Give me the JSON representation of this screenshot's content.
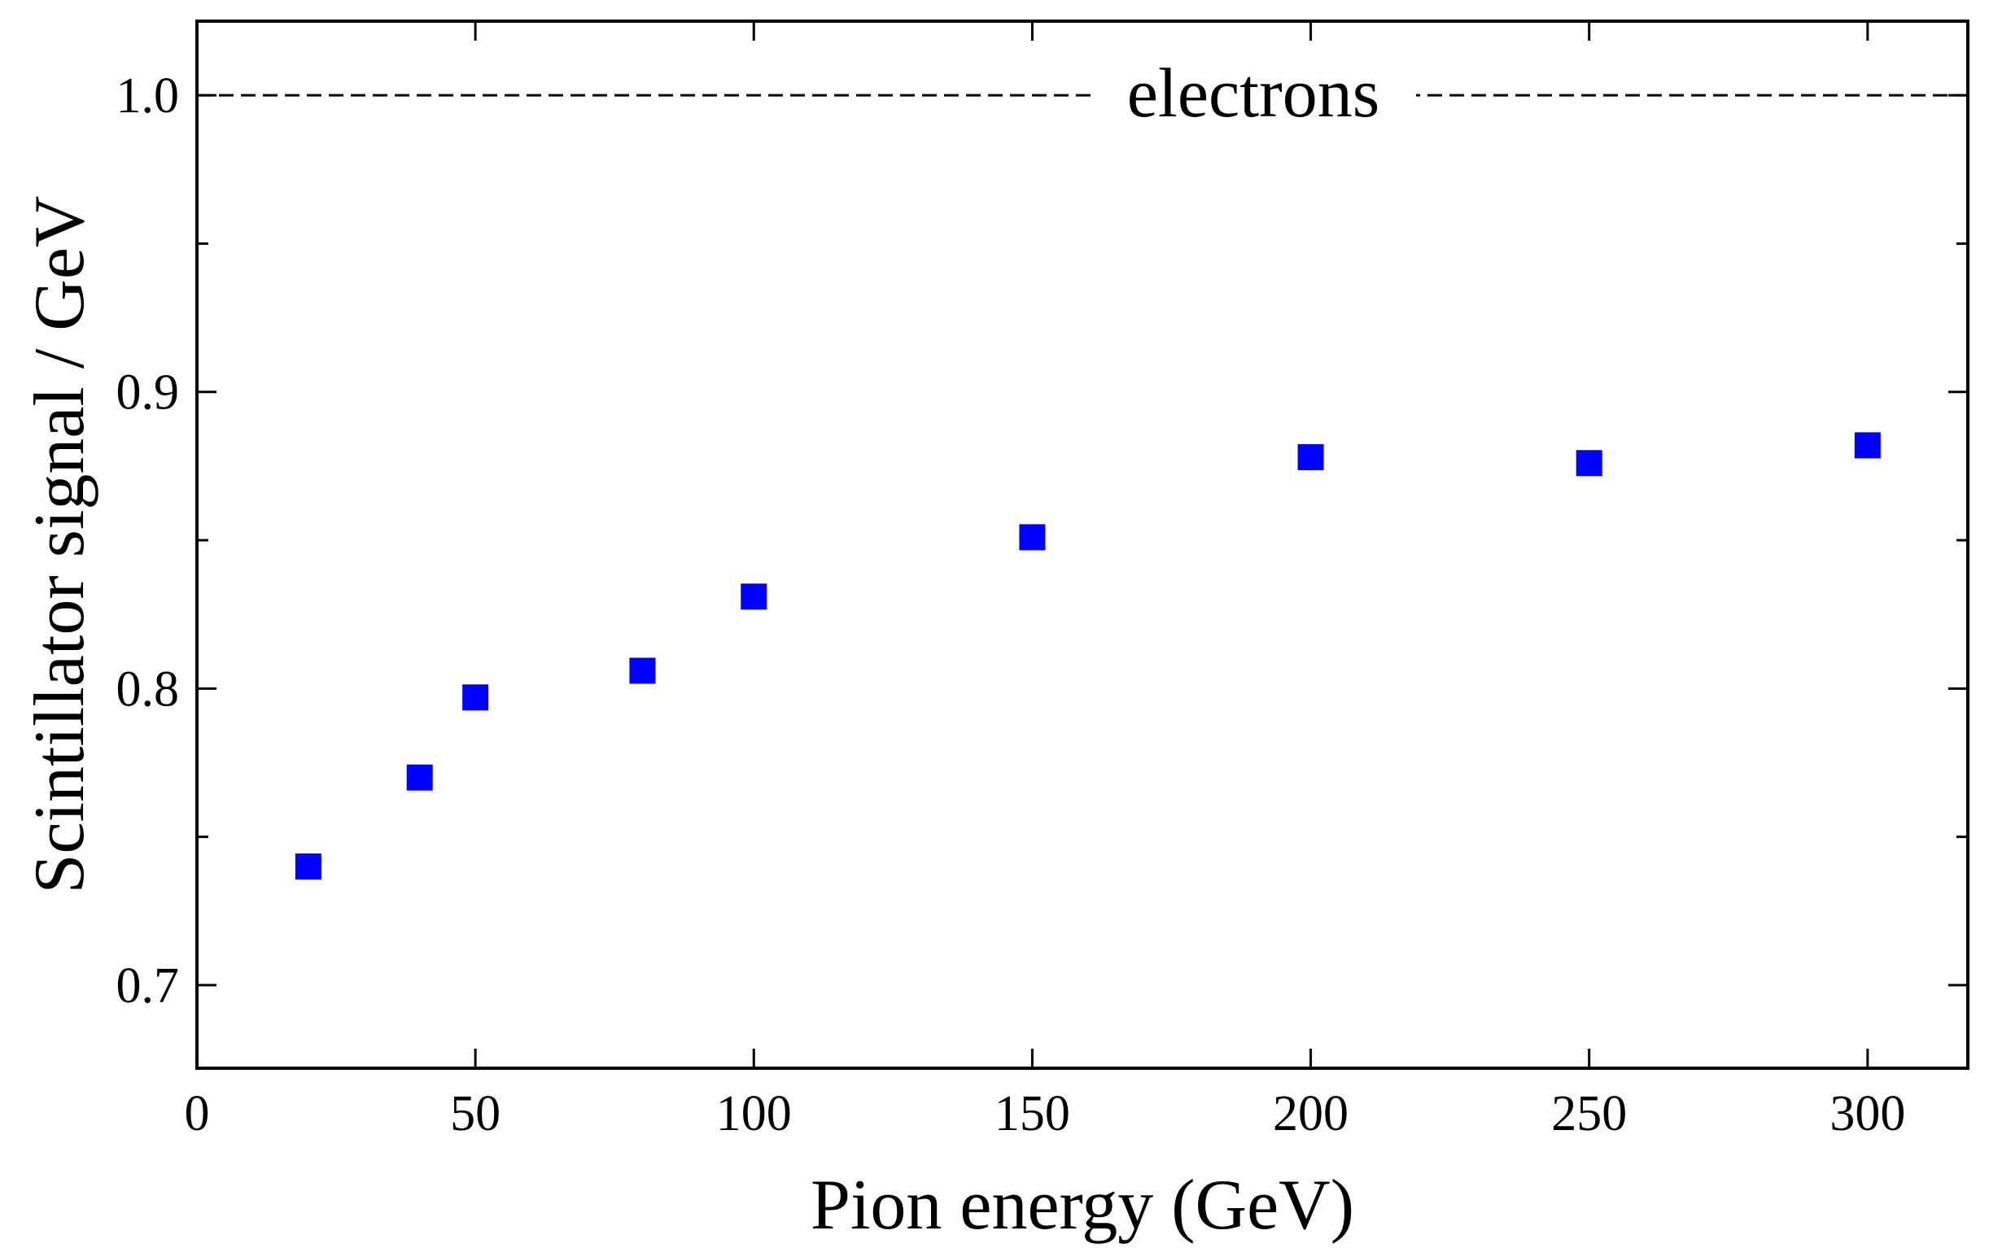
{
  "chart_data": {
    "type": "scatter",
    "xlabel": "Pion energy (GeV)",
    "ylabel": "Scintillator signal / GeV",
    "xlim": [
      0,
      318
    ],
    "ylim": [
      0.672,
      1.025
    ],
    "x_ticks": [
      0,
      50,
      100,
      150,
      200,
      250,
      300
    ],
    "x_tick_labels": [
      "0",
      "50",
      "100",
      "150",
      "200",
      "250",
      "300"
    ],
    "y_ticks": [
      0.7,
      0.8,
      0.9,
      1.0
    ],
    "y_tick_labels": [
      "0.7",
      "0.8",
      "0.9",
      "1.0"
    ],
    "y_minor_ticks": [
      0.75,
      0.85,
      0.95
    ],
    "grid": false,
    "series": [
      {
        "marker": "square",
        "color": "#0000ff",
        "x": [
          20,
          40,
          50,
          80,
          100,
          150,
          200,
          250,
          300
        ],
        "y": [
          0.74,
          0.77,
          0.797,
          0.806,
          0.831,
          0.851,
          0.878,
          0.876,
          0.882
        ]
      }
    ],
    "reference_line": {
      "y": 1.0,
      "style": "dashed",
      "label": "electrons"
    }
  }
}
